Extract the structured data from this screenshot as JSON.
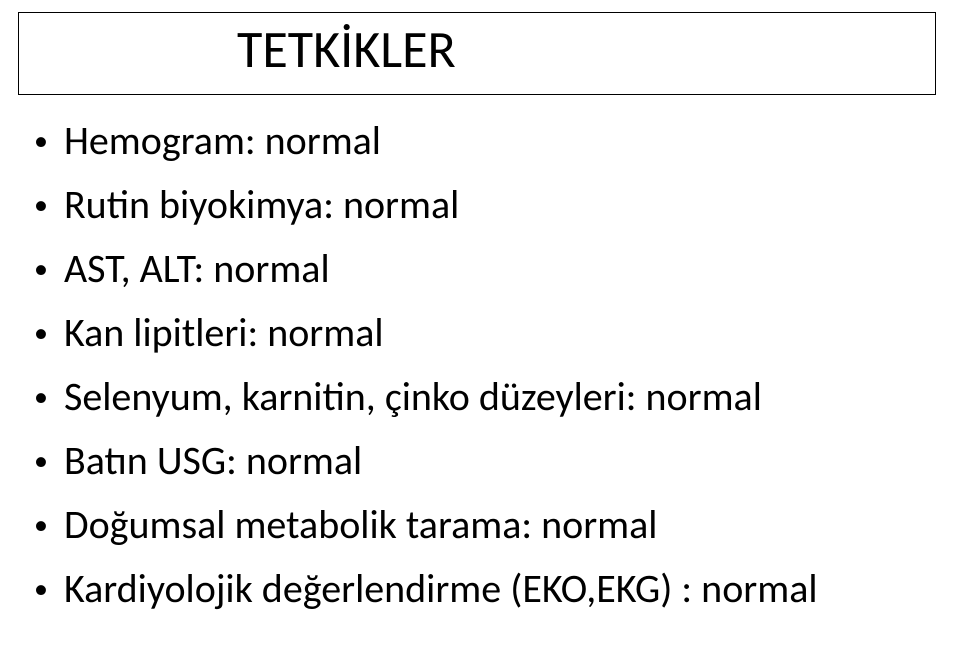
{
  "title": "TETKİKLER",
  "bullets": {
    "b0": "Hemogram: normal",
    "b1": "Rutin biyokimya: normal",
    "b2": "AST, ALT: normal",
    "b3": "Kan lipitleri: normal",
    "b4": "Selenyum, karnitin, çinko düzeyleri: normal",
    "b5": "Batın USG: normal",
    "b6": "Doğumsal metabolik tarama: normal",
    "b7": "Kardiyolojik değerlendirme (EKO,EKG) : normal"
  }
}
